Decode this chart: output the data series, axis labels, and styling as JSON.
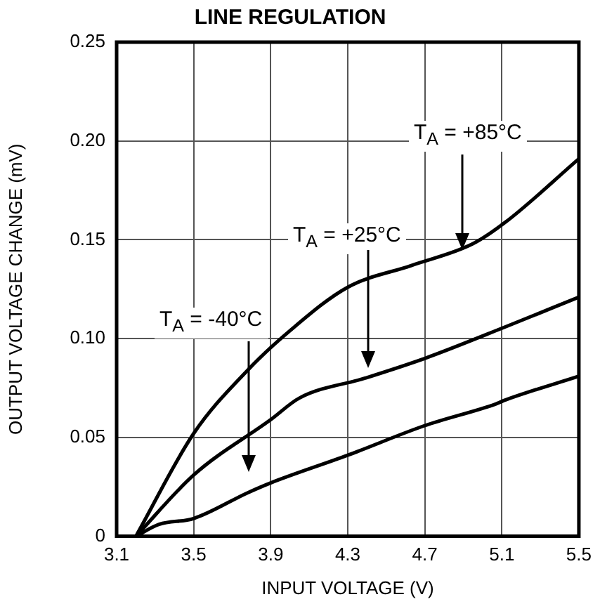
{
  "chart_data": {
    "type": "line",
    "title": "LINE REGULATION",
    "xlabel": "INPUT VOLTAGE (V)",
    "ylabel": "OUTPUT VOLTAGE CHANGE (mV)",
    "xlim": [
      3.1,
      5.5
    ],
    "xticks": [
      3.1,
      3.5,
      3.9,
      4.3,
      4.7,
      5.1,
      5.5
    ],
    "ylim": [
      0,
      0.25
    ],
    "yticks": [
      0,
      0.05,
      {
        "value": 0.1,
        "label": "0.10"
      },
      0.15,
      {
        "value": 0.2,
        "label": "0.20"
      },
      0.25
    ],
    "grid": true,
    "legend": false,
    "marker": "none",
    "line_style": "solid",
    "series": [
      {
        "color": "#000000",
        "x": [
          3.2,
          3.5,
          3.78,
          4.0,
          4.3,
          4.63,
          4.95,
          5.12,
          5.5
        ],
        "values": [
          0,
          0.052,
          0.084,
          0.104,
          0.126,
          0.137,
          0.148,
          0.159,
          0.191
        ]
      },
      {
        "color": "#000000",
        "x": [
          3.2,
          3.5,
          3.9,
          4.05,
          4.39,
          4.7,
          5.12,
          5.5
        ],
        "values": [
          0,
          0.031,
          0.059,
          0.07,
          0.08,
          0.09,
          0.106,
          0.121
        ]
      },
      {
        "color": "#000000",
        "x": [
          3.2,
          3.32,
          3.5,
          3.78,
          3.9,
          4.3,
          4.7,
          5.07,
          5.12,
          5.5
        ],
        "values": [
          0,
          0.006,
          0.009,
          0.022,
          0.027,
          0.041,
          0.056,
          0.067,
          0.069,
          0.081
        ]
      }
    ],
    "annotations": [
      "T$_{A}$ = +85°C",
      "T$_{A}$ = +25°C",
      "T$_{A}$ = -40°C"
    ]
  }
}
